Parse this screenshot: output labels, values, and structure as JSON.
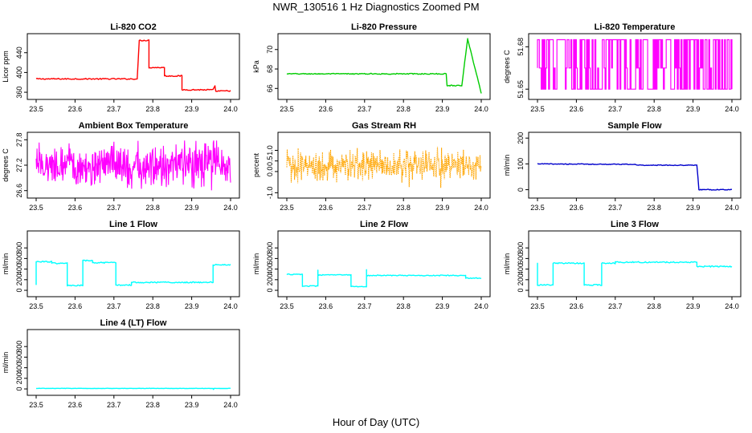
{
  "figure": {
    "title": "NWR_130516  1 Hz Diagnostics Zoomed PM",
    "xlabel": "Hour of Day (UTC)"
  },
  "chart_data": [
    {
      "type": "line",
      "title": "Li-820 CO2",
      "ylabel": "Licor ppm",
      "color": "#ff0000",
      "xlim": [
        23.5,
        24.0
      ],
      "xticks": [
        "23.5",
        "23.6",
        "23.7",
        "23.8",
        "23.9",
        "24.0"
      ],
      "ylim": [
        352,
        472
      ],
      "yticks": [
        {
          "v": 360,
          "label": "360"
        },
        {
          "v": 400,
          "label": "400"
        },
        {
          "v": 440,
          "label": "440"
        }
      ],
      "noise": 1.2,
      "points": [
        [
          23.5,
          387
        ],
        [
          23.76,
          387
        ],
        [
          23.765,
          465
        ],
        [
          23.79,
          465
        ],
        [
          23.79,
          410
        ],
        [
          23.83,
          410
        ],
        [
          23.83,
          393
        ],
        [
          23.875,
          393
        ],
        [
          23.875,
          365
        ],
        [
          23.955,
          365
        ],
        [
          23.96,
          372
        ],
        [
          23.962,
          362
        ],
        [
          24.0,
          363
        ]
      ]
    },
    {
      "type": "line",
      "title": "Li-820 Pressure",
      "ylabel": "kPa",
      "color": "#00cc00",
      "xlim": [
        23.5,
        24.0
      ],
      "xticks": [
        "23.5",
        "23.6",
        "23.7",
        "23.8",
        "23.9",
        "24.0"
      ],
      "ylim": [
        65.2,
        71.3
      ],
      "yticks": [
        {
          "v": 66,
          "label": "66"
        },
        {
          "v": 68,
          "label": "68"
        },
        {
          "v": 70,
          "label": "70"
        }
      ],
      "noise": 0.05,
      "points": [
        [
          23.5,
          67.5
        ],
        [
          23.91,
          67.5
        ],
        [
          23.912,
          66.3
        ],
        [
          23.95,
          66.3
        ],
        [
          23.965,
          71.1
        ],
        [
          24.0,
          65.5
        ]
      ]
    },
    {
      "type": "binary",
      "title": "Li-820 Temperature",
      "ylabel": "degrees C",
      "color": "#ff00ff",
      "xlim": [
        23.5,
        24.0
      ],
      "xticks": [
        "23.5",
        "23.6",
        "23.7",
        "23.8",
        "23.9",
        "24.0"
      ],
      "ylim": [
        51.645,
        51.687
      ],
      "yticks": [
        {
          "v": 51.65,
          "label": "51.65"
        },
        {
          "v": 51.68,
          "label": "51.68"
        }
      ],
      "levels": [
        51.65,
        51.665,
        51.685
      ],
      "count": 210
    },
    {
      "type": "noise",
      "title": "Ambient Box Temperature",
      "ylabel": "degrees C",
      "color": "#ff00ff",
      "xlim": [
        23.5,
        24.0
      ],
      "xticks": [
        "23.5",
        "23.6",
        "23.7",
        "23.8",
        "23.9",
        "24.0"
      ],
      "ylim": [
        26.5,
        27.9
      ],
      "yticks": [
        {
          "v": 26.6,
          "label": "26.6"
        },
        {
          "v": 27.2,
          "label": "27.2"
        },
        {
          "v": 27.8,
          "label": "27.8"
        }
      ],
      "center": 27.2,
      "spread": 0.25,
      "min": 26.55,
      "max": 27.78,
      "count": 460
    },
    {
      "type": "noise",
      "title": "Gas Stream RH",
      "ylabel": "percent",
      "color": "#ffa500",
      "dotted": true,
      "xlim": [
        23.5,
        24.0
      ],
      "xticks": [
        "23.5",
        "23.6",
        "23.7",
        "23.8",
        "23.9",
        "24.0"
      ],
      "ylim": [
        -1.1,
        1.7
      ],
      "yticks": [
        {
          "v": -1.0,
          "label": "-1.0"
        },
        {
          "v": 0.0,
          "label": "0.0"
        },
        {
          "v": 0.5,
          "label": "0.5"
        },
        {
          "v": 1.0,
          "label": "1.0"
        }
      ],
      "center": 0.3,
      "spread": 0.35,
      "min": -1.0,
      "max": 1.55,
      "count": 480
    },
    {
      "type": "line",
      "title": "Sample Flow",
      "ylabel": "ml/min",
      "color": "#0000cc",
      "xlim": [
        23.5,
        24.0
      ],
      "xticks": [
        "23.5",
        "23.6",
        "23.7",
        "23.8",
        "23.9",
        "24.0"
      ],
      "ylim": [
        -20,
        210
      ],
      "yticks": [
        {
          "v": 0,
          "label": "0"
        },
        {
          "v": 100,
          "label": "100"
        },
        {
          "v": 200,
          "label": "200"
        }
      ],
      "noise": 1.5,
      "points": [
        [
          23.5,
          100
        ],
        [
          23.75,
          98
        ],
        [
          23.76,
          95
        ],
        [
          23.91,
          95
        ],
        [
          23.915,
          0
        ],
        [
          24.0,
          0
        ]
      ]
    },
    {
      "type": "line",
      "title": "Line 1 Flow",
      "ylabel": "ml/min",
      "color": "#00ffff",
      "xlim": [
        23.5,
        24.0
      ],
      "xticks": [
        "23.5",
        "23.6",
        "23.7",
        "23.8",
        "23.9",
        "24.0"
      ],
      "ylim": [
        -60,
        1060
      ],
      "yticks": [
        {
          "v": 0,
          "label": "0"
        },
        {
          "v": 200,
          "label": "200"
        },
        {
          "v": 400,
          "label": "400"
        },
        {
          "v": 600,
          "label": "600"
        },
        {
          "v": 800,
          "label": "800"
        }
      ],
      "noise": 12,
      "points": [
        [
          23.5,
          100
        ],
        [
          23.5,
          540
        ],
        [
          23.54,
          540
        ],
        [
          23.54,
          510
        ],
        [
          23.58,
          510
        ],
        [
          23.58,
          90
        ],
        [
          23.62,
          90
        ],
        [
          23.62,
          560
        ],
        [
          23.645,
          560
        ],
        [
          23.645,
          520
        ],
        [
          23.705,
          520
        ],
        [
          23.705,
          100
        ],
        [
          23.745,
          100
        ],
        [
          23.745,
          150
        ],
        [
          23.955,
          150
        ],
        [
          23.955,
          480
        ],
        [
          24.0,
          480
        ]
      ]
    },
    {
      "type": "line",
      "title": "Line 2 Flow",
      "ylabel": "ml/min",
      "color": "#00ffff",
      "xlim": [
        23.5,
        24.0
      ],
      "xticks": [
        "23.5",
        "23.6",
        "23.7",
        "23.8",
        "23.9",
        "24.0"
      ],
      "ylim": [
        -60,
        1060
      ],
      "yticks": [
        {
          "v": 0,
          "label": "0"
        },
        {
          "v": 200,
          "label": "200"
        },
        {
          "v": 400,
          "label": "400"
        },
        {
          "v": 600,
          "label": "600"
        },
        {
          "v": 800,
          "label": "800"
        }
      ],
      "noise": 8,
      "points": [
        [
          23.5,
          300
        ],
        [
          23.54,
          300
        ],
        [
          23.54,
          80
        ],
        [
          23.58,
          80
        ],
        [
          23.58,
          380
        ],
        [
          23.58,
          290
        ],
        [
          23.665,
          290
        ],
        [
          23.665,
          70
        ],
        [
          23.705,
          70
        ],
        [
          23.705,
          390
        ],
        [
          23.705,
          280
        ],
        [
          23.96,
          280
        ],
        [
          23.96,
          230
        ],
        [
          24.0,
          230
        ]
      ]
    },
    {
      "type": "line",
      "title": "Line 3 Flow",
      "ylabel": "ml/min",
      "color": "#00ffff",
      "xlim": [
        23.5,
        24.0
      ],
      "xticks": [
        "23.5",
        "23.6",
        "23.7",
        "23.8",
        "23.9",
        "24.0"
      ],
      "ylim": [
        -60,
        1060
      ],
      "yticks": [
        {
          "v": 0,
          "label": "0"
        },
        {
          "v": 200,
          "label": "200"
        },
        {
          "v": 400,
          "label": "400"
        },
        {
          "v": 600,
          "label": "600"
        },
        {
          "v": 800,
          "label": "800"
        }
      ],
      "noise": 12,
      "points": [
        [
          23.5,
          520
        ],
        [
          23.5,
          100
        ],
        [
          23.54,
          100
        ],
        [
          23.54,
          510
        ],
        [
          23.62,
          510
        ],
        [
          23.62,
          100
        ],
        [
          23.665,
          100
        ],
        [
          23.665,
          510
        ],
        [
          23.7,
          510
        ],
        [
          23.7,
          530
        ],
        [
          23.91,
          530
        ],
        [
          23.91,
          450
        ],
        [
          24.0,
          450
        ]
      ]
    },
    {
      "type": "line",
      "title": "Line 4 (LT) Flow",
      "ylabel": "ml/min",
      "color": "#00ffff",
      "xlim": [
        23.5,
        24.0
      ],
      "xticks": [
        "23.5",
        "23.6",
        "23.7",
        "23.8",
        "23.9",
        "24.0"
      ],
      "ylim": [
        -60,
        1060
      ],
      "yticks": [
        {
          "v": 0,
          "label": "0"
        },
        {
          "v": 200,
          "label": "200"
        },
        {
          "v": 400,
          "label": "400"
        },
        {
          "v": 600,
          "label": "600"
        },
        {
          "v": 800,
          "label": "800"
        }
      ],
      "noise": 3,
      "points": [
        [
          23.5,
          10
        ],
        [
          23.955,
          10
        ],
        [
          23.956,
          -10
        ],
        [
          23.958,
          10
        ],
        [
          24.0,
          10
        ]
      ]
    }
  ]
}
